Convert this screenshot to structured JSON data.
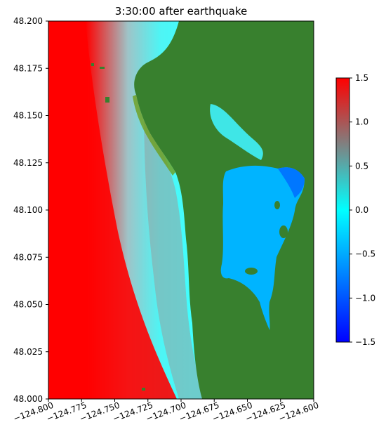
{
  "title": "3:30:00 after earthquake",
  "chart_data": {
    "type": "heatmap",
    "title": "3:30:00 after earthquake",
    "xlim": [
      -124.8,
      -124.6
    ],
    "ylim": [
      48.0,
      48.2
    ],
    "x_ticks": [
      -124.8,
      -124.775,
      -124.75,
      -124.725,
      -124.7,
      -124.675,
      -124.65,
      -124.625,
      -124.6
    ],
    "x_tick_labels": [
      "−124.800",
      "−124.775",
      "−124.750",
      "−124.725",
      "−124.700",
      "−124.675",
      "−124.650",
      "−124.625",
      "−124.600"
    ],
    "y_ticks": [
      48.0,
      48.025,
      48.05,
      48.075,
      48.1,
      48.125,
      48.15,
      48.175,
      48.2
    ],
    "y_tick_labels": [
      "48.000",
      "48.025",
      "48.050",
      "48.075",
      "48.100",
      "48.125",
      "48.150",
      "48.175",
      "48.200"
    ],
    "colorbar": {
      "range": [
        -1.5,
        1.5
      ],
      "ticks": [
        -1.5,
        -1.0,
        -0.5,
        0.0,
        0.5,
        1.0,
        1.5
      ],
      "tick_labels": [
        "−1.5",
        "−1.0",
        "−0.5",
        "0.0",
        "0.5",
        "1.0",
        "1.5"
      ],
      "colors": [
        "#0000ff",
        "#00ffff",
        "#808080",
        "#ff0000"
      ]
    },
    "land_color": "#38802e",
    "grid": false
  }
}
